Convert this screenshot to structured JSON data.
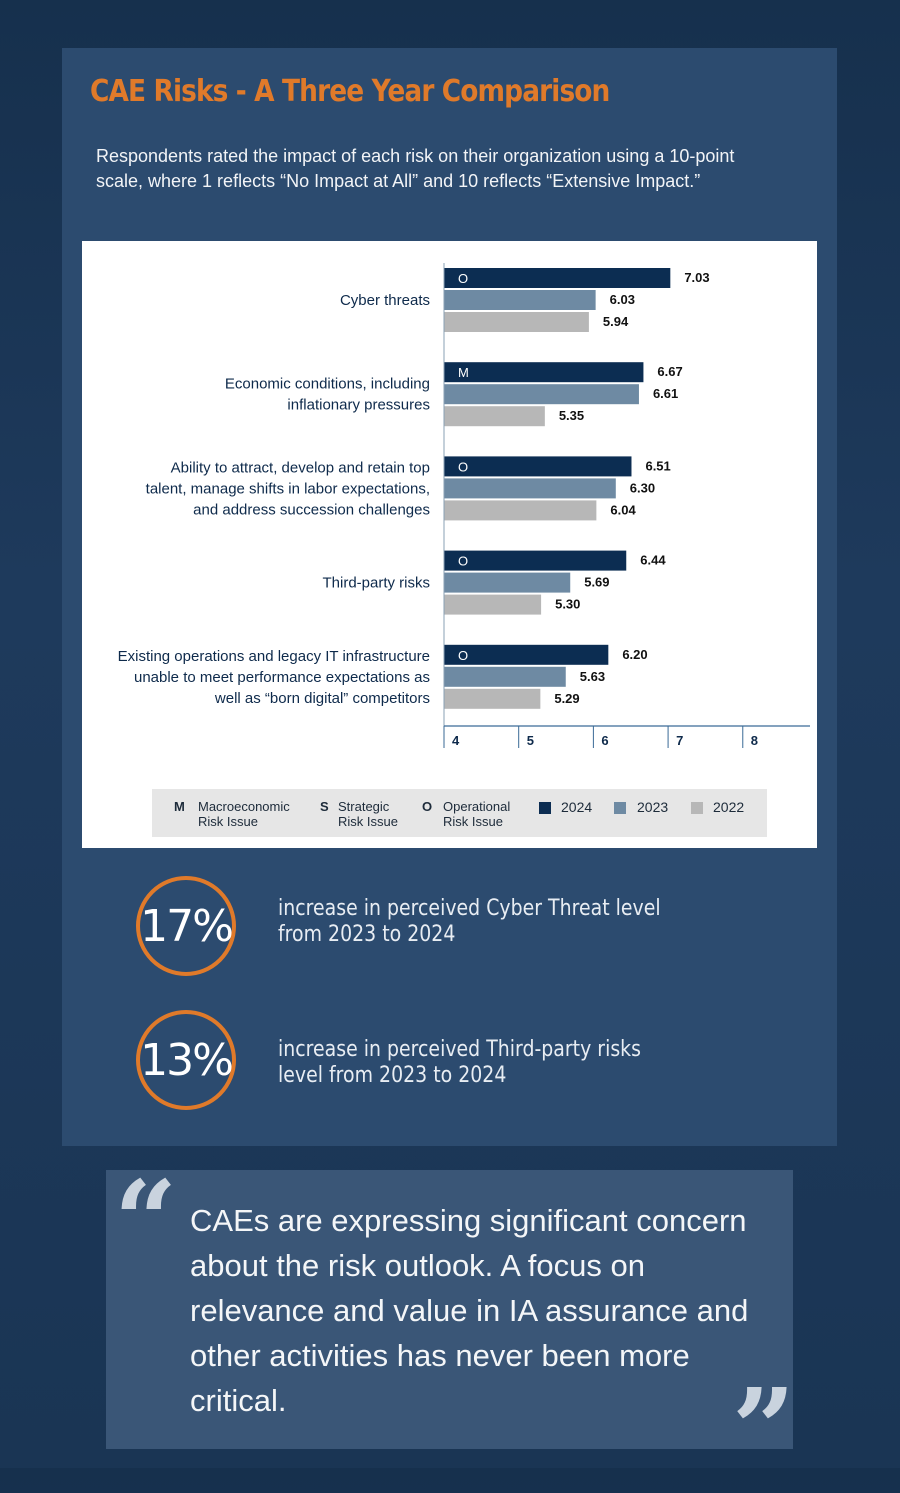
{
  "title": "CAE Risks - A Three Year Comparison",
  "intro": "Respondents rated the impact of each risk on their organization using a 10-point scale, where 1 reflects “No Impact at All” and 10 reflects “Extensive Impact.”",
  "colors": {
    "orange": "#e07a2a",
    "y2024": "#0c2d52",
    "y2023": "#6e8aa3",
    "y2022": "#b7b7b7"
  },
  "chart_data": {
    "type": "bar",
    "orientation": "horizontal",
    "categories": [
      {
        "lines": [
          "Cyber threats"
        ],
        "code": "O"
      },
      {
        "lines": [
          "Economic conditions, including",
          "inflationary pressures"
        ],
        "code": "M"
      },
      {
        "lines": [
          "Ability to attract, develop and retain top",
          "talent, manage shifts in labor expectations,",
          "and address succession challenges"
        ],
        "code": "O"
      },
      {
        "lines": [
          "Third-party risks"
        ],
        "code": "O"
      },
      {
        "lines": [
          "Existing operations and legacy IT infrastructure",
          "unable to meet performance expectations as",
          "well as “born digital” competitors"
        ],
        "code": "O"
      }
    ],
    "series": [
      {
        "name": "2024",
        "values": [
          7.03,
          6.67,
          6.51,
          6.44,
          6.2
        ],
        "labels": [
          "7.03",
          "6.67",
          "6.51",
          "6.44",
          "6.20"
        ]
      },
      {
        "name": "2023",
        "values": [
          6.03,
          6.61,
          6.3,
          5.69,
          5.63
        ],
        "labels": [
          "6.03",
          "6.61",
          "6.30",
          "5.69",
          "5.63"
        ]
      },
      {
        "name": "2022",
        "values": [
          5.94,
          5.35,
          6.04,
          5.3,
          5.29
        ],
        "labels": [
          "5.94",
          "5.35",
          "6.04",
          "5.30",
          "5.29"
        ]
      }
    ],
    "xlim": [
      4,
      8.9
    ],
    "xticks": [
      4,
      5,
      6,
      7,
      8
    ]
  },
  "legend": {
    "macro_key": "M",
    "macro_line1": "Macroeconomic",
    "macro_line2": "Risk Issue",
    "strat_key": "S",
    "strat_line1": "Strategic",
    "strat_line2": "Risk Issue",
    "oper_key": "O",
    "oper_line1": "Operational",
    "oper_line2": "Risk Issue",
    "y2024": "2024",
    "y2023": "2023",
    "y2022": "2022"
  },
  "stats": [
    {
      "value": "17%",
      "text": "increase in perceived Cyber Threat level from 2023 to 2024"
    },
    {
      "value": "13%",
      "text": "increase in perceived Third-party risks level from 2023 to 2024"
    }
  ],
  "quote": {
    "open": "“",
    "text": "CAEs are expressing significant concern about the risk outlook. A focus on relevance and value in IA assurance and other activities has never been more critical.",
    "close": "”"
  }
}
